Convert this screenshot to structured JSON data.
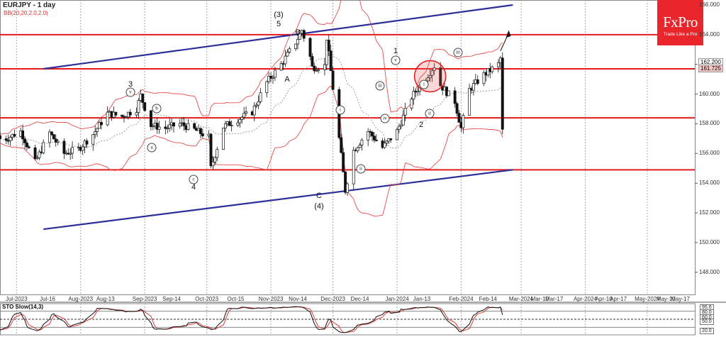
{
  "header": {
    "symbol_title": "EURJPY - 1 day",
    "indicator_label": "BB(20,20,2.0,2.0)"
  },
  "logo": {
    "brand": "FxPro",
    "tagline": "Trade Like a Pro",
    "color": "#e8252b"
  },
  "price_axis": {
    "ticks": [
      "166.000",
      "164.000",
      "162.000",
      "160.000",
      "158.000",
      "156.000",
      "154.000",
      "152.000",
      "150.000",
      "148.000"
    ],
    "current_badges": [
      {
        "label": "162.200",
        "bg": "#ffffff"
      },
      {
        "label": "161.725",
        "bg": "#f4c7c7"
      }
    ]
  },
  "date_axis": {
    "ticks": [
      "Jul-2023",
      "Jul-16",
      "Aug-2023",
      "Aug-13",
      "Sep-2023",
      "Sep-14",
      "Oct-2023",
      "Oct-15",
      "Nov-2023",
      "Nov-14",
      "Dec-2023",
      "Dec-14",
      "Jan-2024",
      "Jan-13",
      "Feb-2024",
      "Feb-14",
      "Mar-2024",
      "Mar-10",
      "Mar-17",
      "Apr-2024",
      "Apr-10",
      "Apr-17",
      "May-2024",
      "May-10",
      "May-17"
    ]
  },
  "stochastic": {
    "label": "STO Slow(14,3)",
    "levels": [
      "95.6",
      "80.0",
      "60.0",
      "50.0",
      "20.0"
    ]
  },
  "wave_labels": {
    "plain": [
      "(3)",
      "5",
      "B",
      "A",
      "3",
      "4",
      "C",
      "(4)",
      "1",
      "2"
    ],
    "circled": [
      "v",
      "b",
      "a",
      "c",
      "i",
      "ii",
      "iii",
      "iv",
      "v",
      "i",
      "ii",
      "iii"
    ]
  },
  "chart_data": {
    "type": "candlestick",
    "title": "EURJPY - 1 day",
    "indicators": [
      "Bollinger Bands (20,20,2.0,2.0)",
      "Stochastic Slow (14,3)"
    ],
    "ylim": [
      146.5,
      166.3
    ],
    "y_ticks": [
      148,
      150,
      152,
      154,
      156,
      158,
      160,
      162,
      164,
      166
    ],
    "x_range": [
      "2023-06-23",
      "2024-05-24"
    ],
    "horizontal_levels": [
      164.0,
      161.7,
      158.4,
      154.9
    ],
    "channel_lines": [
      {
        "name": "upper",
        "from": {
          "date": "2023-07-14",
          "price": 161.7
        },
        "to": {
          "date": "2024-02-26",
          "price": 166.0
        }
      },
      {
        "name": "lower",
        "from": {
          "date": "2023-07-14",
          "price": 150.9
        },
        "to": {
          "date": "2024-02-26",
          "price": 154.9
        }
      }
    ],
    "last_price": 161.725,
    "ask_price": 162.2,
    "forecast_arrow": {
      "from": 163.0,
      "to": 164.0
    },
    "closes_weekly_approx": [
      {
        "date": "2023-06-26",
        "close": 157.0
      },
      {
        "date": "2023-07-03",
        "close": 157.5
      },
      {
        "date": "2023-07-10",
        "close": 155.4
      },
      {
        "date": "2023-07-17",
        "close": 157.4
      },
      {
        "date": "2023-07-24",
        "close": 156.0
      },
      {
        "date": "2023-07-31",
        "close": 156.3
      },
      {
        "date": "2023-08-07",
        "close": 157.3
      },
      {
        "date": "2023-08-14",
        "close": 158.7
      },
      {
        "date": "2023-08-21",
        "close": 158.5
      },
      {
        "date": "2023-08-28",
        "close": 159.0
      },
      {
        "date": "2023-09-04",
        "close": 157.9
      },
      {
        "date": "2023-09-11",
        "close": 157.7
      },
      {
        "date": "2023-09-18",
        "close": 158.0
      },
      {
        "date": "2023-09-25",
        "close": 157.6
      },
      {
        "date": "2023-10-02",
        "close": 157.1
      },
      {
        "date": "2023-10-09",
        "close": 157.8
      },
      {
        "date": "2023-10-16",
        "close": 158.3
      },
      {
        "date": "2023-10-23",
        "close": 158.8
      },
      {
        "date": "2023-10-30",
        "close": 160.8
      },
      {
        "date": "2023-11-06",
        "close": 162.0
      },
      {
        "date": "2023-11-13",
        "close": 163.5
      },
      {
        "date": "2023-11-20",
        "close": 162.5
      },
      {
        "date": "2023-11-27",
        "close": 161.9
      },
      {
        "date": "2023-12-04",
        "close": 157.0
      },
      {
        "date": "2023-12-11",
        "close": 156.2
      },
      {
        "date": "2023-12-18",
        "close": 157.5
      },
      {
        "date": "2023-12-25",
        "close": 156.4
      },
      {
        "date": "2024-01-01",
        "close": 157.5
      },
      {
        "date": "2024-01-08",
        "close": 159.8
      },
      {
        "date": "2024-01-15",
        "close": 161.1
      },
      {
        "date": "2024-01-22",
        "close": 160.6
      },
      {
        "date": "2024-01-29",
        "close": 159.5
      },
      {
        "date": "2024-02-05",
        "close": 160.3
      },
      {
        "date": "2024-02-12",
        "close": 161.3
      },
      {
        "date": "2024-02-19",
        "close": 162.0
      }
    ],
    "key_points": [
      {
        "label": "3 (v)",
        "date": "2023-08-30",
        "price": 159.9
      },
      {
        "label": "4 (c)",
        "date": "2023-10-03",
        "price": 155.0
      },
      {
        "label": "(3) 5",
        "date": "2023-11-16",
        "price": 164.3
      },
      {
        "label": "A",
        "date": "2023-11-21",
        "price": 161.8
      },
      {
        "label": "B",
        "date": "2023-11-28",
        "price": 163.8
      },
      {
        "label": "C (4)",
        "date": "2023-12-07",
        "price": 153.5
      },
      {
        "label": "1 (v)",
        "date": "2024-01-19",
        "price": 161.9
      },
      {
        "label": "2",
        "date": "2024-02-01",
        "price": 157.7
      },
      {
        "label": "(iii)",
        "date": "2024-02-20",
        "price": 162.4
      }
    ],
    "stochastic_panel": {
      "ylim": [
        0,
        100
      ],
      "levels": [
        95.6,
        80,
        60,
        50,
        20
      ]
    }
  }
}
